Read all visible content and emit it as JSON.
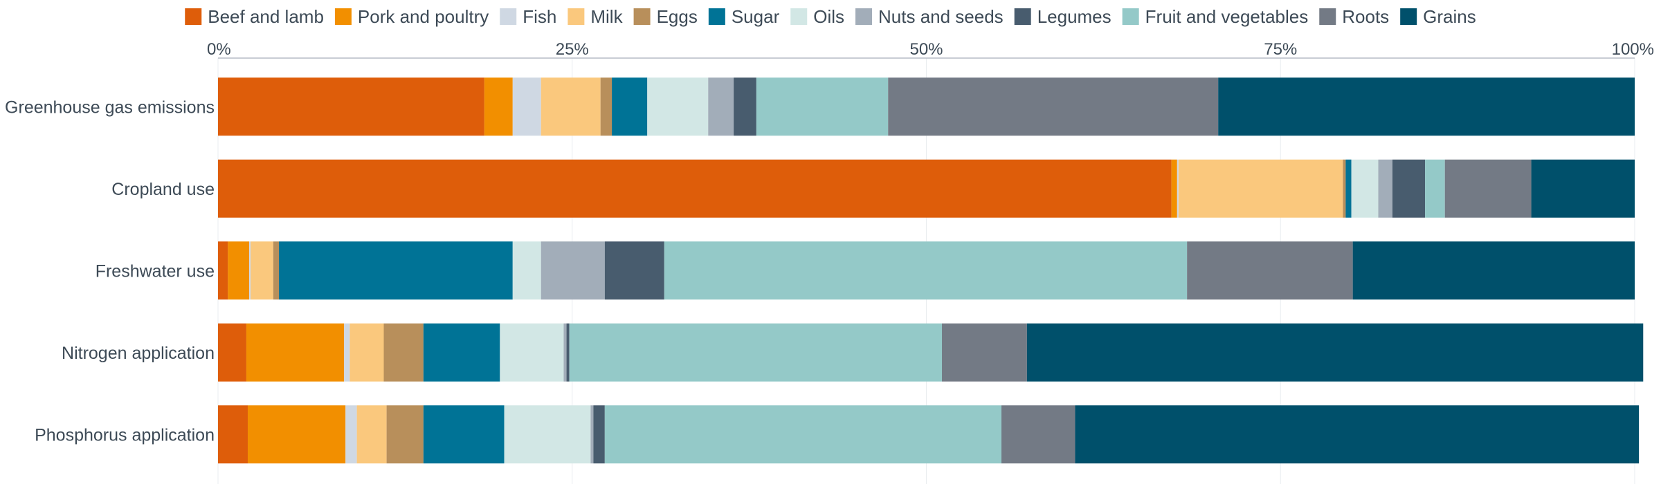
{
  "chart_data": {
    "type": "bar",
    "orientation": "horizontal",
    "stacked": true,
    "title": "",
    "xlabel": "",
    "ylabel": "",
    "xlim": [
      0,
      100
    ],
    "grid": true,
    "legend_position": "top",
    "x_ticks": [
      {
        "value": 0,
        "label": "0%"
      },
      {
        "value": 25,
        "label": "25%"
      },
      {
        "value": 50,
        "label": "50%"
      },
      {
        "value": 75,
        "label": "75%"
      },
      {
        "value": 100,
        "label": "100%"
      }
    ],
    "categories": [
      "Greenhouse gas emissions",
      "Cropland use",
      "Freshwater use",
      "Nitrogen application",
      "Phosphorus application"
    ],
    "series": [
      {
        "name": "Beef and lamb",
        "color": "#de5d0a",
        "values": [
          18.8,
          67.3,
          0.7,
          2.0,
          2.1
        ]
      },
      {
        "name": "Pork and poultry",
        "color": "#f28f00",
        "values": [
          2.0,
          0.4,
          1.5,
          6.9,
          6.9
        ]
      },
      {
        "name": "Fish",
        "color": "#cfd8e3",
        "values": [
          2.0,
          0.1,
          0.1,
          0.4,
          0.8
        ]
      },
      {
        "name": "Milk",
        "color": "#fac87d",
        "values": [
          4.2,
          11.6,
          1.6,
          2.4,
          2.1
        ]
      },
      {
        "name": "Eggs",
        "color": "#b88f5b",
        "values": [
          0.8,
          0.2,
          0.4,
          2.8,
          2.6
        ]
      },
      {
        "name": "Sugar",
        "color": "#007396",
        "values": [
          2.5,
          0.4,
          16.5,
          5.4,
          5.7
        ]
      },
      {
        "name": "Oils",
        "color": "#d2e7e5",
        "values": [
          4.3,
          1.9,
          2.0,
          4.5,
          6.1
        ]
      },
      {
        "name": "Nuts and seeds",
        "color": "#a2adb9",
        "values": [
          1.8,
          1.0,
          4.5,
          0.2,
          0.2
        ]
      },
      {
        "name": "Legumes",
        "color": "#485c6e",
        "values": [
          1.6,
          2.3,
          4.2,
          0.2,
          0.8
        ]
      },
      {
        "name": "Fruit and vegetables",
        "color": "#94c9c8",
        "values": [
          9.3,
          1.4,
          36.9,
          26.3,
          28.0
        ]
      },
      {
        "name": "Roots",
        "color": "#737a85",
        "values": [
          23.3,
          6.1,
          11.7,
          6.0,
          5.2
        ]
      },
      {
        "name": "Grains",
        "color": "#00506b",
        "values": [
          29.4,
          7.3,
          19.9,
          43.5,
          39.8
        ]
      }
    ]
  }
}
